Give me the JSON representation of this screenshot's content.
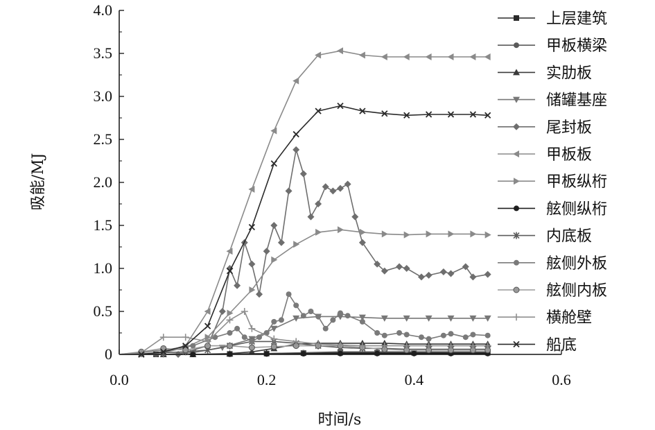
{
  "chart_data": {
    "type": "line",
    "title": "",
    "xlabel": "时间/s",
    "ylabel": "吸能/MJ",
    "xlim": [
      0.0,
      0.6
    ],
    "ylim": [
      0.0,
      4.0
    ],
    "x_ticks": [
      "0.0",
      "0.2",
      "0.4",
      "0.6"
    ],
    "y_ticks": [
      "0",
      "0.5",
      "1.0",
      "1.5",
      "2.0",
      "2.5",
      "3.0",
      "3.5",
      "4.0"
    ],
    "grid": false,
    "legend_position": "right",
    "series": [
      {
        "name": "上层建筑",
        "marker": "square",
        "color": "#2a2a2a",
        "x": [
          0,
          0.05,
          0.1,
          0.15,
          0.2,
          0.25,
          0.3,
          0.35,
          0.4,
          0.45,
          0.5
        ],
        "y": [
          0,
          0,
          0,
          0.005,
          0.01,
          0.015,
          0.02,
          0.02,
          0.02,
          0.02,
          0.02
        ]
      },
      {
        "name": "甲板横梁",
        "marker": "circle",
        "color": "#5a5a5a",
        "x": [
          0,
          0.05,
          0.1,
          0.15,
          0.2,
          0.25,
          0.3,
          0.35,
          0.4,
          0.45,
          0.5
        ],
        "y": [
          0,
          0,
          0,
          0.005,
          0.01,
          0.02,
          0.03,
          0.03,
          0.03,
          0.03,
          0.03
        ]
      },
      {
        "name": "实肋板",
        "marker": "triangle-up",
        "color": "#3a3a3a",
        "x": [
          0,
          0.06,
          0.1,
          0.15,
          0.18,
          0.21,
          0.24,
          0.27,
          0.3,
          0.33,
          0.36,
          0.39,
          0.42,
          0.45,
          0.48,
          0.5
        ],
        "y": [
          0,
          0,
          0,
          0.01,
          0.03,
          0.07,
          0.12,
          0.13,
          0.13,
          0.13,
          0.13,
          0.12,
          0.12,
          0.12,
          0.12,
          0.12
        ]
      },
      {
        "name": "储罐基座",
        "marker": "triangle-down",
        "color": "#777777",
        "x": [
          0,
          0.06,
          0.1,
          0.14,
          0.18,
          0.21,
          0.24,
          0.27,
          0.3,
          0.33,
          0.36,
          0.39,
          0.42,
          0.45,
          0.48,
          0.5
        ],
        "y": [
          0,
          0,
          0.02,
          0.08,
          0.18,
          0.3,
          0.42,
          0.44,
          0.44,
          0.43,
          0.42,
          0.42,
          0.42,
          0.42,
          0.42,
          0.42
        ]
      },
      {
        "name": "尾封板",
        "marker": "diamond",
        "color": "#6e6e6e",
        "x": [
          0,
          0.08,
          0.12,
          0.14,
          0.15,
          0.16,
          0.17,
          0.18,
          0.19,
          0.2,
          0.21,
          0.22,
          0.23,
          0.24,
          0.25,
          0.26,
          0.27,
          0.28,
          0.29,
          0.3,
          0.31,
          0.32,
          0.33,
          0.35,
          0.36,
          0.38,
          0.39,
          0.41,
          0.42,
          0.44,
          0.45,
          0.47,
          0.48,
          0.5
        ],
        "y": [
          0,
          0,
          0.1,
          0.5,
          1.0,
          0.8,
          1.3,
          1.05,
          0.7,
          1.2,
          1.5,
          1.3,
          1.9,
          2.38,
          2.1,
          1.6,
          1.75,
          1.95,
          1.9,
          1.93,
          1.98,
          1.6,
          1.3,
          1.05,
          0.97,
          1.02,
          1.0,
          0.9,
          0.92,
          0.96,
          0.94,
          1.02,
          0.9,
          0.93
        ]
      },
      {
        "name": "甲板板",
        "marker": "triangle-left",
        "color": "#8a8a8a",
        "x": [
          0,
          0.03,
          0.06,
          0.09,
          0.12,
          0.15,
          0.18,
          0.21,
          0.24,
          0.27,
          0.3,
          0.33,
          0.36,
          0.39,
          0.42,
          0.45,
          0.48,
          0.5
        ],
        "y": [
          0,
          0,
          0.02,
          0.1,
          0.5,
          1.2,
          1.92,
          2.6,
          3.18,
          3.48,
          3.53,
          3.48,
          3.46,
          3.46,
          3.46,
          3.46,
          3.46,
          3.46
        ]
      },
      {
        "name": "甲板纵桁",
        "marker": "triangle-right",
        "color": "#8a8a8a",
        "x": [
          0,
          0.03,
          0.06,
          0.09,
          0.12,
          0.15,
          0.18,
          0.21,
          0.24,
          0.27,
          0.3,
          0.33,
          0.36,
          0.39,
          0.42,
          0.45,
          0.48,
          0.5
        ],
        "y": [
          0,
          0,
          0.02,
          0.08,
          0.2,
          0.48,
          0.75,
          1.1,
          1.28,
          1.42,
          1.45,
          1.42,
          1.4,
          1.39,
          1.4,
          1.4,
          1.4,
          1.39
        ]
      },
      {
        "name": "舷侧纵桁",
        "marker": "circle",
        "color": "#1e1e1e",
        "x": [
          0,
          0.1,
          0.15,
          0.2,
          0.25,
          0.3,
          0.35,
          0.4,
          0.45,
          0.5
        ],
        "y": [
          0,
          0,
          0.002,
          0.005,
          0.008,
          0.01,
          0.01,
          0.01,
          0.01,
          0.01
        ]
      },
      {
        "name": "内底板",
        "marker": "star",
        "color": "#5a5a5a",
        "x": [
          0,
          0.03,
          0.06,
          0.09,
          0.12,
          0.15,
          0.18,
          0.21,
          0.24,
          0.27,
          0.3,
          0.33,
          0.36,
          0.39,
          0.42,
          0.45,
          0.48,
          0.5
        ],
        "y": [
          0,
          0.01,
          0.02,
          0.03,
          0.05,
          0.1,
          0.15,
          0.15,
          0.13,
          0.1,
          0.08,
          0.07,
          0.07,
          0.06,
          0.06,
          0.06,
          0.06,
          0.06
        ]
      },
      {
        "name": "舷侧外板",
        "marker": "circle",
        "color": "#7a7a7a",
        "x": [
          0,
          0.06,
          0.1,
          0.13,
          0.15,
          0.16,
          0.17,
          0.18,
          0.19,
          0.2,
          0.21,
          0.22,
          0.23,
          0.24,
          0.25,
          0.26,
          0.27,
          0.28,
          0.29,
          0.3,
          0.31,
          0.33,
          0.35,
          0.36,
          0.38,
          0.39,
          0.41,
          0.42,
          0.44,
          0.45,
          0.47,
          0.48,
          0.5
        ],
        "y": [
          0,
          0.05,
          0.1,
          0.2,
          0.25,
          0.3,
          0.2,
          0.15,
          0.2,
          0.25,
          0.38,
          0.4,
          0.7,
          0.57,
          0.45,
          0.5,
          0.44,
          0.3,
          0.4,
          0.48,
          0.45,
          0.38,
          0.25,
          0.22,
          0.25,
          0.23,
          0.2,
          0.18,
          0.22,
          0.24,
          0.2,
          0.23,
          0.22
        ]
      },
      {
        "name": "舷侧内板",
        "marker": "circle-open",
        "color": "#9a9a9a",
        "x": [
          0,
          0.03,
          0.06,
          0.09,
          0.12,
          0.15,
          0.18,
          0.21,
          0.24,
          0.27,
          0.3,
          0.33,
          0.36,
          0.39,
          0.42,
          0.45,
          0.48,
          0.5
        ],
        "y": [
          0,
          0.03,
          0.07,
          0.05,
          0.1,
          0.1,
          0.08,
          0.09,
          0.1,
          0.1,
          0.1,
          0.08,
          0.06,
          0.05,
          0.05,
          0.05,
          0.05,
          0.05
        ]
      },
      {
        "name": "横舱壁",
        "marker": "plus",
        "color": "#8f8f8f",
        "x": [
          0,
          0.03,
          0.06,
          0.09,
          0.12,
          0.15,
          0.17,
          0.18,
          0.21,
          0.24,
          0.27,
          0.3,
          0.33,
          0.36,
          0.39,
          0.42,
          0.45,
          0.48,
          0.5
        ],
        "y": [
          0,
          0.02,
          0.2,
          0.2,
          0.15,
          0.4,
          0.5,
          0.3,
          0.18,
          0.15,
          0.12,
          0.11,
          0.1,
          0.1,
          0.1,
          0.1,
          0.1,
          0.1,
          0.1
        ]
      },
      {
        "name": "船底",
        "marker": "x",
        "color": "#2a2a2a",
        "x": [
          0,
          0.03,
          0.06,
          0.09,
          0.12,
          0.15,
          0.18,
          0.21,
          0.24,
          0.27,
          0.3,
          0.33,
          0.36,
          0.39,
          0.42,
          0.45,
          0.48,
          0.5
        ],
        "y": [
          0,
          0,
          0.03,
          0.1,
          0.33,
          0.97,
          1.48,
          2.22,
          2.56,
          2.83,
          2.89,
          2.83,
          2.8,
          2.78,
          2.79,
          2.79,
          2.79,
          2.78
        ]
      }
    ]
  }
}
